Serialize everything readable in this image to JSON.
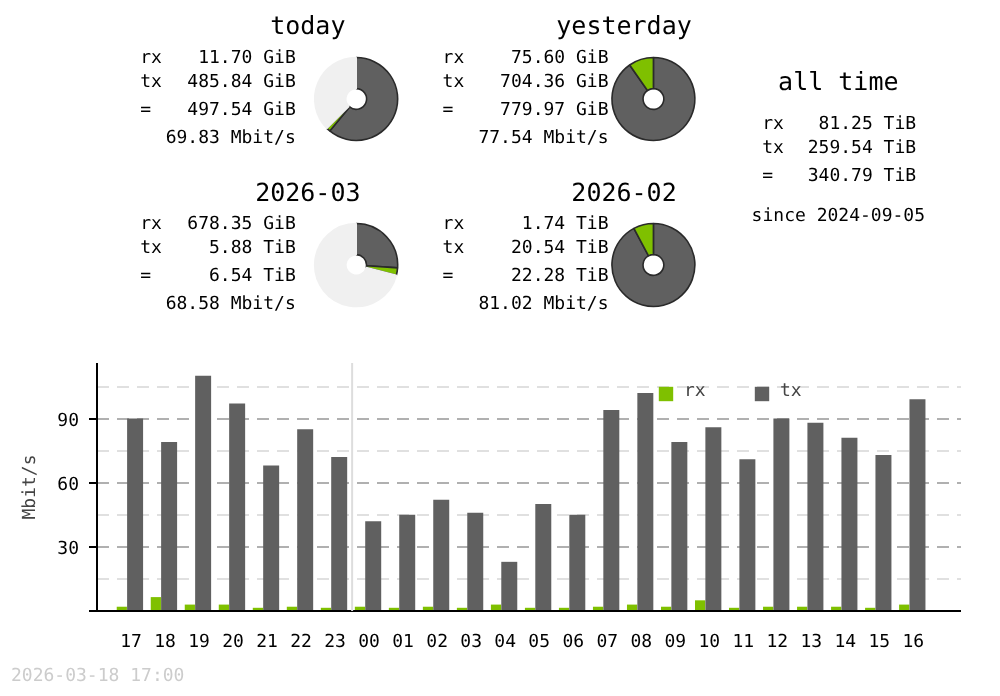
{
  "chart_data": [
    {
      "type": "donut",
      "title": "today",
      "annotations": [
        "rx 11.70 GiB",
        "tx 485.84 GiB",
        "= 497.54 GiB",
        "69.83 Mbit/s"
      ],
      "categories": [
        null,
        null,
        null
      ],
      "values": [
        61.0,
        1.5,
        37.5
      ],
      "colors": [
        "#606060",
        "#7fc000",
        "#f0f0f0"
      ]
    },
    {
      "type": "donut",
      "title": "yesterday",
      "annotations": [
        "rx 75.60 GiB",
        "tx 704.36 GiB",
        "= 779.97 GiB",
        "77.54 Mbit/s"
      ],
      "categories": [
        null,
        null
      ],
      "values": [
        90.3,
        9.7
      ],
      "colors": [
        "#606060",
        "#7fc000"
      ]
    },
    {
      "type": "donut",
      "title": "2026-03",
      "annotations": [
        "rx 678.35 GiB",
        "tx 5.88 TiB",
        "= 6.54 TiB",
        "68.58 Mbit/s"
      ],
      "categories": [
        null,
        null,
        null
      ],
      "values": [
        26.1,
        2.9,
        71.0
      ],
      "colors": [
        "#606060",
        "#7fc000",
        "#f0f0f0"
      ]
    },
    {
      "type": "donut",
      "title": "2026-02",
      "annotations": [
        "rx 1.74 TiB",
        "tx 20.54 TiB",
        "= 22.28 TiB",
        "81.02 Mbit/s"
      ],
      "categories": [
        null,
        null
      ],
      "values": [
        92.2,
        7.8
      ],
      "colors": [
        "#606060",
        "#7fc000"
      ]
    },
    {
      "type": "other",
      "title": "all time",
      "annotations": [
        "rx 81.25 TiB",
        "tx 259.54 TiB",
        "= 340.79 TiB",
        "since 2024-09-05"
      ]
    },
    {
      "type": "bar",
      "ylabel": "Mbit/s",
      "annotations": [
        "2026-03-18 17:00"
      ],
      "categories": [
        "17",
        "18",
        "19",
        "20",
        "21",
        "22",
        "23",
        "00",
        "01",
        "02",
        "03",
        "04",
        "05",
        "06",
        "07",
        "08",
        "09",
        "10",
        "11",
        "12",
        "13",
        "14",
        "15",
        "16"
      ],
      "series": [
        {
          "name": "rx",
          "color": "#7fc000",
          "values": [
            2,
            6.5,
            3,
            3,
            1.5,
            2,
            1.5,
            2,
            1.5,
            2,
            1.5,
            3,
            1.5,
            1.5,
            2,
            3,
            2,
            5,
            1.5,
            2,
            2,
            2,
            1.5,
            3
          ]
        },
        {
          "name": "tx",
          "color": "#606060",
          "values": [
            90,
            79,
            110,
            97,
            68,
            85,
            72,
            42,
            45,
            52,
            46,
            23,
            50,
            45,
            94,
            102,
            79,
            86,
            71,
            90,
            88,
            81,
            73,
            99
          ]
        }
      ],
      "ylim": [
        0,
        116
      ],
      "yticks": [
        {
          "value": 0,
          "label": null
        },
        30,
        60,
        90
      ],
      "grid": "y",
      "legend": "top right",
      "ref_lines": [
        {
          "axis": "x",
          "value": "00",
          "color": "#dddddd"
        }
      ]
    }
  ]
}
